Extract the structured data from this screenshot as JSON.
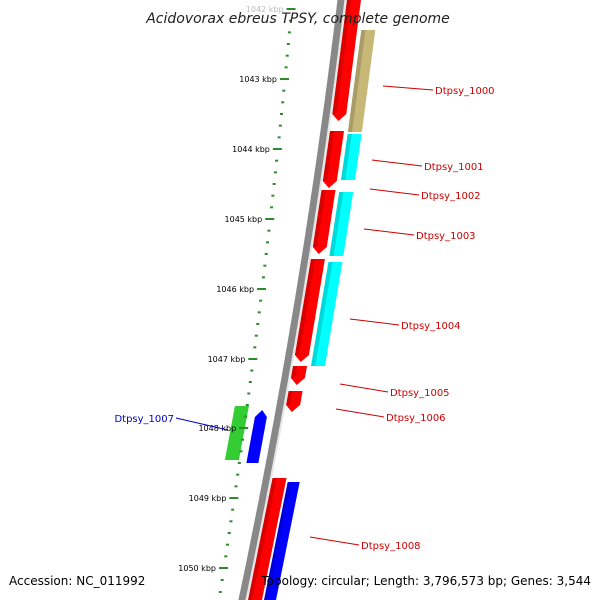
{
  "title": "Acidovorax ebreus TPSY, complete genome",
  "colors": {
    "backbone": "#888888",
    "tick": "#2d8a2d",
    "forward_gene": "#ff0000",
    "forward_gene_shade": "#b30000",
    "reverse_gene": "#0000ff",
    "reverse_gene_shade": "#00008c",
    "cog_cyan": "#00ffff",
    "cog_khaki": "#c8b878",
    "cog_green": "#33cc33",
    "label_red": "#cc0000",
    "label_blue": "#0000cc"
  },
  "ticks": [
    {
      "label": "1042 kbp",
      "faded": true
    },
    {
      "label": "1043 kbp"
    },
    {
      "label": "1044 kbp"
    },
    {
      "label": "1045 kbp"
    },
    {
      "label": "1046 kbp"
    },
    {
      "label": "1047 kbp"
    },
    {
      "label": "1048 kbp"
    },
    {
      "label": "1049 kbp"
    },
    {
      "label": "1050 kbp"
    }
  ],
  "gene_labels": [
    {
      "name": "Dtpsy_1000",
      "color": "#cc0000"
    },
    {
      "name": "Dtpsy_1001",
      "color": "#cc0000"
    },
    {
      "name": "Dtpsy_1002",
      "color": "#cc0000"
    },
    {
      "name": "Dtpsy_1003",
      "color": "#cc0000"
    },
    {
      "name": "Dtpsy_1004",
      "color": "#cc0000"
    },
    {
      "name": "Dtpsy_1005",
      "color": "#cc0000"
    },
    {
      "name": "Dtpsy_1006",
      "color": "#cc0000"
    },
    {
      "name": "Dtpsy_1007",
      "color": "#0000cc"
    },
    {
      "name": "Dtpsy_1008",
      "color": "#cc0000"
    }
  ],
  "footer": {
    "accession": "Accession: NC_011992",
    "summary": "Topology: circular; Length: 3,796,573 bp; Genes: 3,544"
  }
}
